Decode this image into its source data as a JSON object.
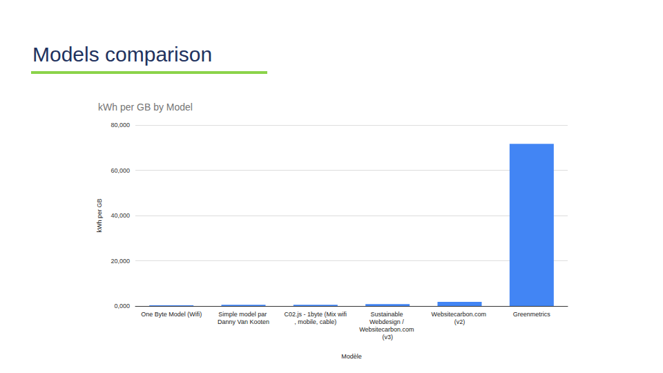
{
  "slide": {
    "title": "Models comparison"
  },
  "chart_data": {
    "type": "bar",
    "title": "kWh per GB by Model",
    "x_label": "Modèle",
    "y_label": "kWh per GB",
    "categories": [
      "One Byte Model (Wifi)",
      "Simple model par Danny Van Kooten",
      "C02.js - 1byte (Mix wifi, mobile, cable)",
      "Sustainable Webdesign / Websitecarbon.com (v3)",
      "Websitecarbon.com (v2)",
      "Greenmetrics"
    ],
    "values": [
      0.3,
      0.5,
      0.5,
      0.81,
      1.8,
      71.7
    ],
    "color": "#4285f4",
    "ylim": [
      0,
      80
    ],
    "yticks": [
      {
        "value": 0,
        "label": "0,000"
      },
      {
        "value": 20,
        "label": "20,000"
      },
      {
        "value": 40,
        "label": "40,000"
      },
      {
        "value": 60,
        "label": "60,000"
      },
      {
        "value": 80,
        "label": "80,000"
      }
    ],
    "grid": true
  }
}
